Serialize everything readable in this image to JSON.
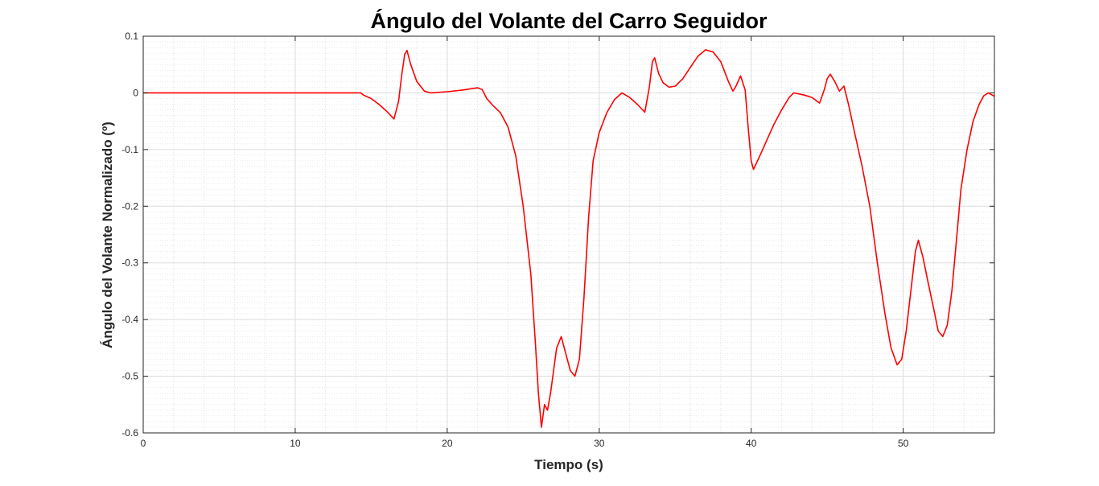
{
  "chart_data": {
    "type": "line",
    "title": "Ángulo del Volante del Carro Seguidor",
    "xlabel": "Tiempo (s)",
    "ylabel": "Ángulo del Volante Normalizado (º)",
    "xlim": [
      0,
      56
    ],
    "ylim": [
      -0.6,
      0.1
    ],
    "grid": true,
    "minor_grid": true,
    "x_ticks": [
      0,
      10,
      20,
      30,
      40,
      50
    ],
    "x_tick_labels": [
      "0",
      "10",
      "20",
      "30",
      "40",
      "50"
    ],
    "y_ticks": [
      0.1,
      0,
      -0.1,
      -0.2,
      -0.3,
      -0.4,
      -0.5,
      -0.6
    ],
    "y_tick_labels": [
      "0.1",
      "0",
      "-0.1",
      "-0.2",
      "-0.3",
      "-0.4",
      "-0.5",
      "-0.6"
    ],
    "series": [
      {
        "color": "#ff0000",
        "points": [
          [
            0,
            0
          ],
          [
            14.3,
            0
          ],
          [
            14.5,
            -0.004
          ],
          [
            15.0,
            -0.01
          ],
          [
            15.5,
            -0.02
          ],
          [
            16.0,
            -0.032
          ],
          [
            16.5,
            -0.046
          ],
          [
            16.8,
            -0.015
          ],
          [
            17.0,
            0.03
          ],
          [
            17.2,
            0.068
          ],
          [
            17.35,
            0.075
          ],
          [
            17.6,
            0.05
          ],
          [
            18.0,
            0.02
          ],
          [
            18.5,
            0.003
          ],
          [
            18.9,
            0.0
          ],
          [
            20.0,
            0.002
          ],
          [
            21.0,
            0.005
          ],
          [
            22.0,
            0.009
          ],
          [
            22.3,
            0.006
          ],
          [
            22.6,
            -0.01
          ],
          [
            23.0,
            -0.022
          ],
          [
            23.5,
            -0.035
          ],
          [
            24.0,
            -0.06
          ],
          [
            24.5,
            -0.11
          ],
          [
            25.0,
            -0.2
          ],
          [
            25.5,
            -0.32
          ],
          [
            25.8,
            -0.44
          ],
          [
            26.0,
            -0.53
          ],
          [
            26.2,
            -0.59
          ],
          [
            26.4,
            -0.55
          ],
          [
            26.6,
            -0.56
          ],
          [
            26.8,
            -0.53
          ],
          [
            27.0,
            -0.49
          ],
          [
            27.2,
            -0.45
          ],
          [
            27.5,
            -0.43
          ],
          [
            27.8,
            -0.46
          ],
          [
            28.1,
            -0.49
          ],
          [
            28.4,
            -0.5
          ],
          [
            28.7,
            -0.47
          ],
          [
            29.0,
            -0.36
          ],
          [
            29.3,
            -0.22
          ],
          [
            29.6,
            -0.12
          ],
          [
            30.0,
            -0.07
          ],
          [
            30.5,
            -0.035
          ],
          [
            31.0,
            -0.012
          ],
          [
            31.5,
            0.0
          ],
          [
            32.0,
            -0.008
          ],
          [
            32.5,
            -0.02
          ],
          [
            33.0,
            -0.034
          ],
          [
            33.3,
            0.01
          ],
          [
            33.5,
            0.055
          ],
          [
            33.65,
            0.062
          ],
          [
            33.9,
            0.035
          ],
          [
            34.2,
            0.018
          ],
          [
            34.6,
            0.01
          ],
          [
            35.0,
            0.012
          ],
          [
            35.5,
            0.025
          ],
          [
            36.0,
            0.045
          ],
          [
            36.5,
            0.065
          ],
          [
            37.0,
            0.076
          ],
          [
            37.5,
            0.072
          ],
          [
            38.0,
            0.055
          ],
          [
            38.5,
            0.02
          ],
          [
            38.8,
            0.003
          ],
          [
            39.0,
            0.012
          ],
          [
            39.3,
            0.03
          ],
          [
            39.6,
            0.005
          ],
          [
            39.8,
            -0.06
          ],
          [
            40.0,
            -0.12
          ],
          [
            40.15,
            -0.135
          ],
          [
            40.5,
            -0.115
          ],
          [
            41.0,
            -0.085
          ],
          [
            41.5,
            -0.055
          ],
          [
            42.0,
            -0.03
          ],
          [
            42.5,
            -0.008
          ],
          [
            42.8,
            0.0
          ],
          [
            43.5,
            -0.004
          ],
          [
            44.0,
            -0.008
          ],
          [
            44.5,
            -0.018
          ],
          [
            44.8,
            0.005
          ],
          [
            45.0,
            0.025
          ],
          [
            45.2,
            0.033
          ],
          [
            45.5,
            0.02
          ],
          [
            45.8,
            0.003
          ],
          [
            46.1,
            0.012
          ],
          [
            46.4,
            -0.02
          ],
          [
            46.8,
            -0.07
          ],
          [
            47.3,
            -0.13
          ],
          [
            47.8,
            -0.2
          ],
          [
            48.3,
            -0.3
          ],
          [
            48.8,
            -0.39
          ],
          [
            49.2,
            -0.45
          ],
          [
            49.6,
            -0.48
          ],
          [
            49.9,
            -0.47
          ],
          [
            50.2,
            -0.42
          ],
          [
            50.5,
            -0.35
          ],
          [
            50.8,
            -0.28
          ],
          [
            51.0,
            -0.26
          ],
          [
            51.3,
            -0.29
          ],
          [
            51.6,
            -0.33
          ],
          [
            52.0,
            -0.38
          ],
          [
            52.3,
            -0.42
          ],
          [
            52.6,
            -0.43
          ],
          [
            52.9,
            -0.41
          ],
          [
            53.2,
            -0.35
          ],
          [
            53.5,
            -0.26
          ],
          [
            53.8,
            -0.17
          ],
          [
            54.2,
            -0.1
          ],
          [
            54.6,
            -0.05
          ],
          [
            55.0,
            -0.02
          ],
          [
            55.3,
            -0.005
          ],
          [
            55.6,
            0.0
          ],
          [
            56.0,
            -0.006
          ]
        ]
      }
    ]
  }
}
